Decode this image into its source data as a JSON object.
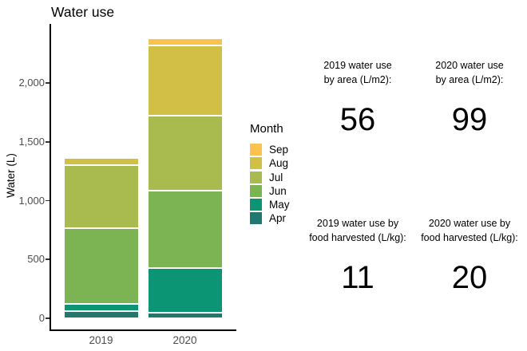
{
  "chart_data": {
    "type": "bar",
    "variant": "stacked",
    "title": "Water use",
    "ylabel": "Water (L)",
    "xlabel": "",
    "categories": [
      "2019",
      "2020"
    ],
    "legend_title": "Month",
    "legend_order": [
      "Sep",
      "Aug",
      "Jul",
      "Jun",
      "May",
      "Apr"
    ],
    "series": [
      {
        "name": "Apr",
        "color": "#20786F",
        "values": [
          60,
          45
        ]
      },
      {
        "name": "May",
        "color": "#0C9575",
        "values": [
          65,
          385
        ]
      },
      {
        "name": "Jun",
        "color": "#7CB454",
        "values": [
          640,
          655
        ]
      },
      {
        "name": "Jul",
        "color": "#A9BB4F",
        "values": [
          540,
          635
        ]
      },
      {
        "name": "Aug",
        "color": "#D2C046",
        "values": [
          60,
          600
        ]
      },
      {
        "name": "Sep",
        "color": "#FCC24E",
        "values": [
          0,
          57
        ]
      }
    ],
    "totals": [
      1365,
      2379
    ],
    "yticks": [
      0,
      500,
      1000,
      1500,
      2000
    ],
    "ytick_labels": [
      "0",
      "500",
      "1,000",
      "1,500",
      "2,000"
    ],
    "ylim": [
      0,
      2500
    ],
    "grid": "off",
    "legend_position": "right"
  },
  "stats": [
    {
      "label_line1": "2019 water use",
      "label_line2": "by area (L/m2):",
      "value": "56"
    },
    {
      "label_line1": "2020 water use",
      "label_line2": "by area (L/m2):",
      "value": "99"
    },
    {
      "label_line1": "2019 water use by",
      "label_line2": "food harvested (L/kg):",
      "value": "11"
    },
    {
      "label_line1": "2020 water use by",
      "label_line2": "food harvested (L/kg):",
      "value": "20"
    }
  ]
}
